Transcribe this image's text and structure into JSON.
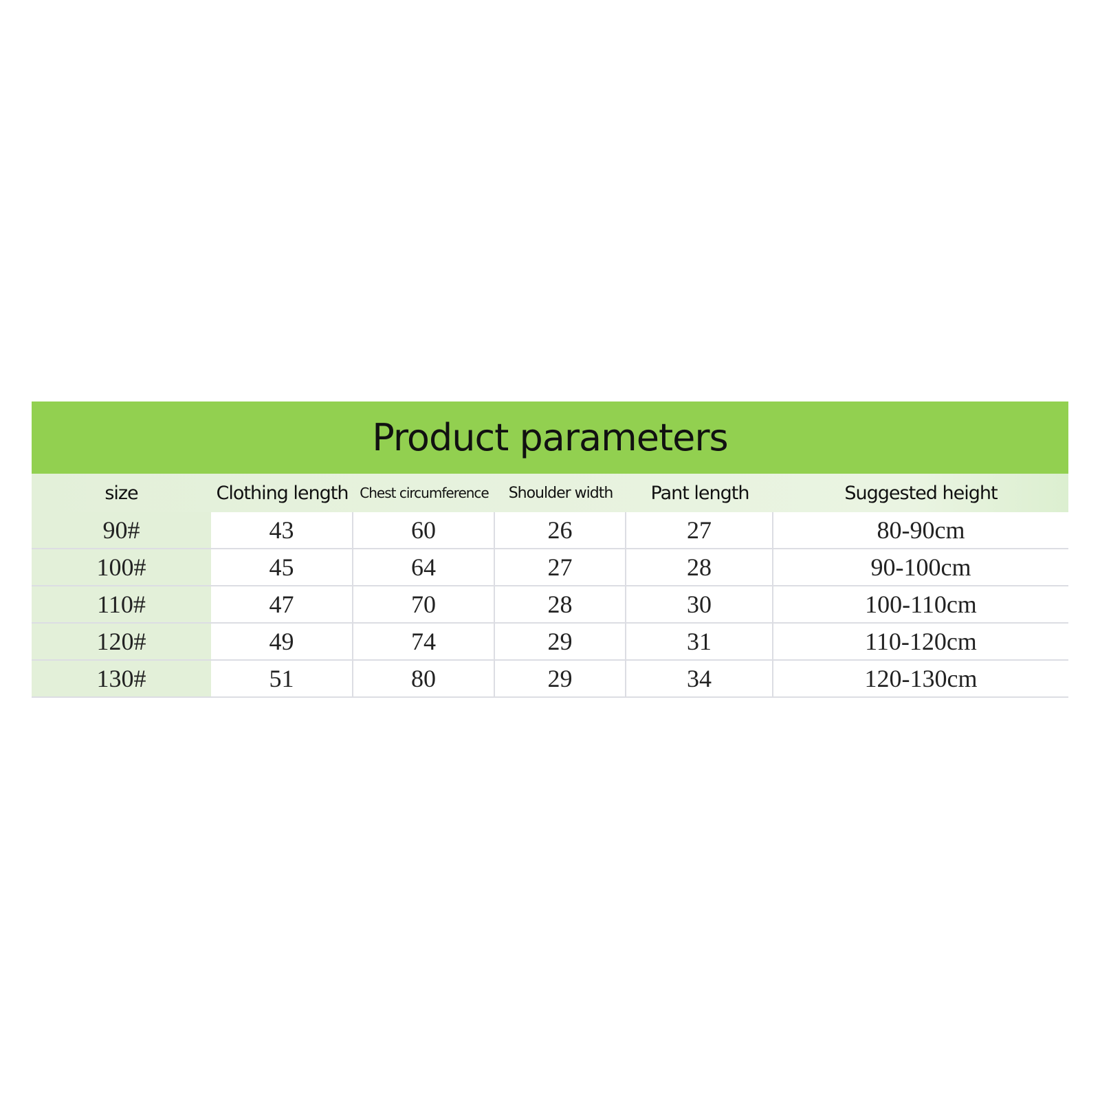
{
  "title": "Product parameters",
  "colors": {
    "header_green": "#92d050",
    "size_column_bg": "#e3f0d9"
  },
  "headers": [
    "size",
    "Clothing length",
    "Chest circumference",
    "Shoulder width",
    "Pant length",
    "Suggested height"
  ],
  "rows": [
    [
      "90#",
      "43",
      "60",
      "26",
      "27",
      "80-90cm"
    ],
    [
      "100#",
      "45",
      "64",
      "27",
      "28",
      "90-100cm"
    ],
    [
      "110#",
      "47",
      "70",
      "28",
      "30",
      "100-110cm"
    ],
    [
      "120#",
      "49",
      "74",
      "29",
      "31",
      "110-120cm"
    ],
    [
      "130#",
      "51",
      "80",
      "29",
      "34",
      "120-130cm"
    ]
  ]
}
